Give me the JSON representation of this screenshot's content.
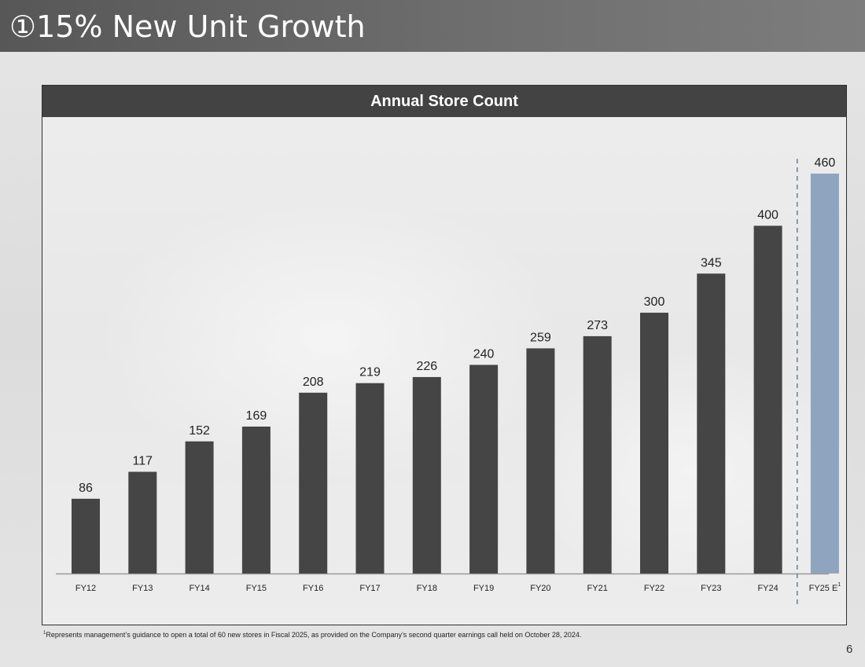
{
  "slide": {
    "title": "①15% New Unit Growth",
    "page_number": "6",
    "footnote_marker": "1",
    "footnote": "Represents management’s guidance to open a total of 60 new stores in Fiscal 2025, as provided on the Company’s second quarter earnings call held on October 28, 2024."
  },
  "chart_data": {
    "type": "bar",
    "title": "Annual Store Count",
    "categories": [
      "FY12",
      "FY13",
      "FY14",
      "FY15",
      "FY16",
      "FY17",
      "FY18",
      "FY19",
      "FY20",
      "FY21",
      "FY22",
      "FY23",
      "FY24",
      "FY25 E"
    ],
    "values": [
      86,
      117,
      152,
      169,
      208,
      219,
      226,
      240,
      259,
      273,
      300,
      345,
      400,
      460
    ],
    "category_footnote": {
      "category": "FY25 E",
      "marker": "1"
    },
    "estimate_category": "FY25 E",
    "ylim": [
      0,
      500
    ],
    "grid": false,
    "legend": "none",
    "colors": {
      "actual": "#454545",
      "estimate": "#8fa4bf",
      "divider": "#6b7c94"
    }
  }
}
